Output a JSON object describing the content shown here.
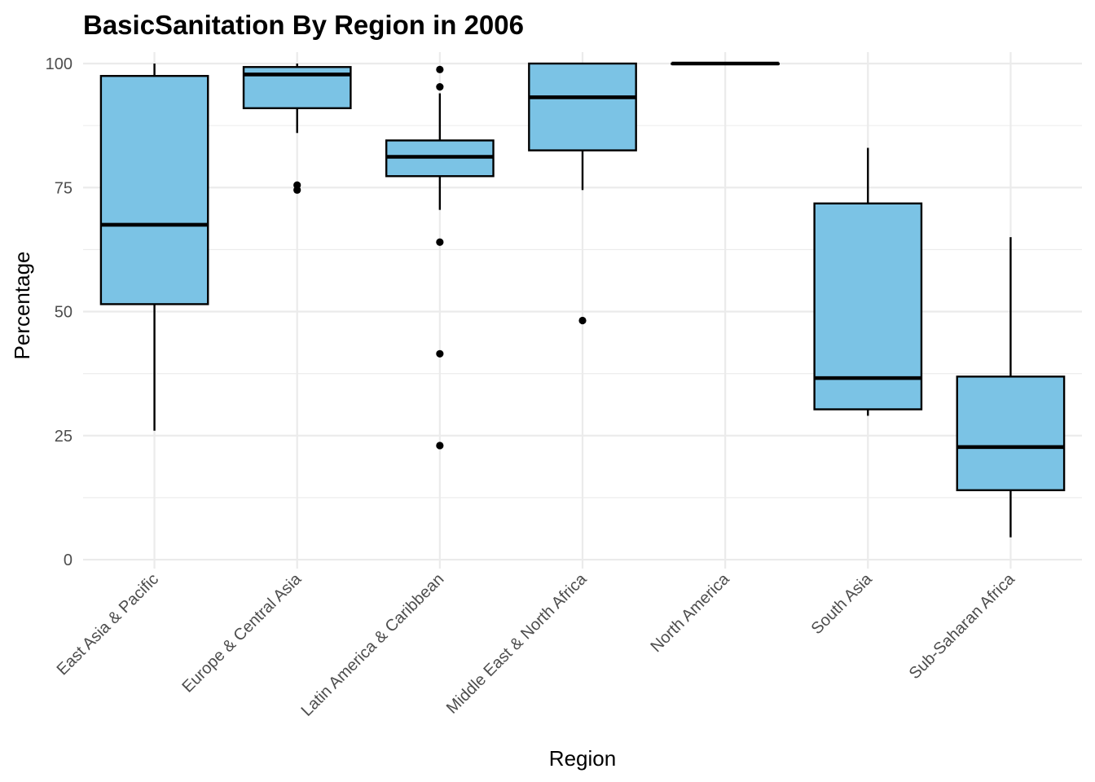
{
  "chart_data": {
    "type": "boxplot",
    "title": "BasicSanitation By Region in 2006",
    "xlabel": "Region",
    "ylabel": "Percentage",
    "ylim": [
      -1.8,
      102.3
    ],
    "yticks": [
      0,
      25,
      50,
      75,
      100
    ],
    "yminor": [
      12.5,
      37.5,
      62.5,
      87.5
    ],
    "grid": true,
    "box_fill": "#7BC3E5",
    "line_color": "#000000",
    "grid_color": "#EBEBEB",
    "categories": [
      "East Asia & Pacific",
      "Europe & Central Asia",
      "Latin America & Caribbean",
      "Middle East & North Africa",
      "North America",
      "South Asia",
      "Sub-Saharan Africa"
    ],
    "boxes": [
      {
        "whisker_low": 26,
        "q1": 51.5,
        "median": 67.5,
        "q3": 97.5,
        "whisker_high": 100,
        "outliers": []
      },
      {
        "whisker_low": 86,
        "q1": 91,
        "median": 97.8,
        "q3": 99.3,
        "whisker_high": 100,
        "outliers": [
          75.5,
          74.5
        ]
      },
      {
        "whisker_low": 70.5,
        "q1": 77.3,
        "median": 81.2,
        "q3": 84.5,
        "whisker_high": 94,
        "outliers": [
          98.8,
          95.3,
          64,
          41.5,
          23
        ]
      },
      {
        "whisker_low": 74.5,
        "q1": 82.5,
        "median": 93.2,
        "q3": 100,
        "whisker_high": 100,
        "outliers": [
          48.2
        ]
      },
      {
        "whisker_low": 100,
        "q1": 100,
        "median": 100,
        "q3": 100,
        "whisker_high": 100,
        "outliers": []
      },
      {
        "whisker_low": 29,
        "q1": 30.3,
        "median": 36.6,
        "q3": 71.8,
        "whisker_high": 83,
        "outliers": []
      },
      {
        "whisker_low": 4.5,
        "q1": 14,
        "median": 22.7,
        "q3": 36.9,
        "whisker_high": 65,
        "outliers": []
      }
    ]
  }
}
